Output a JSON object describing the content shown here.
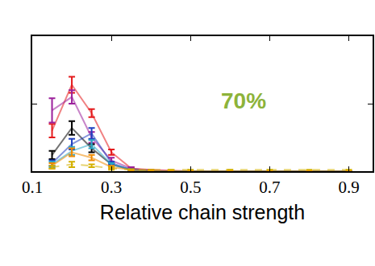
{
  "chart_data": {
    "type": "line",
    "x_label": "Relative chain strength",
    "annotations": [
      "70%"
    ],
    "annotation_color": "#8db33a",
    "x": [
      0.15,
      0.2,
      0.25,
      0.3,
      0.35,
      0.4,
      0.45,
      0.5,
      0.6,
      0.7,
      0.8,
      0.9
    ],
    "xlim": [
      0.1,
      0.96
    ],
    "xticks": [
      0.1,
      0.3,
      0.5,
      0.7,
      0.9
    ],
    "ylim": [
      0,
      1
    ],
    "yticks": [
      0,
      0.5,
      1
    ],
    "tick_labels": "x",
    "grid": false,
    "series": [
      {
        "color": "#e41a1c",
        "line_style": "solid",
        "marker": "none",
        "values": [
          0.3,
          0.64,
          0.43,
          0.14,
          0.02,
          0.01,
          0.005,
          0,
          0,
          0,
          0,
          0
        ],
        "error": [
          0.05,
          0.06,
          0.03,
          0.02,
          0.01,
          0,
          0,
          0,
          0,
          0,
          0,
          0
        ]
      },
      {
        "color": "#9b1f9b",
        "line_style": "solid",
        "marker": "none",
        "values": [
          0.45,
          0.55,
          0.25,
          0.08,
          0.02,
          0.005,
          0,
          0,
          0,
          0,
          0,
          0
        ],
        "error": [
          0.09,
          0.05,
          0.04,
          0.02,
          0.01,
          0,
          0,
          0,
          0,
          0,
          0,
          0
        ]
      },
      {
        "color": "#000000",
        "line_style": "solid",
        "marker": "none",
        "values": [
          0.12,
          0.32,
          0.17,
          0.05,
          0.01,
          0,
          0,
          0,
          0,
          0,
          0,
          0
        ],
        "error": [
          0.03,
          0.05,
          0.03,
          0.01,
          0.005,
          0,
          0,
          0,
          0,
          0,
          0,
          0
        ]
      },
      {
        "color": "#1f3fbf",
        "line_style": "solid",
        "marker": "none",
        "values": [
          0.06,
          0.2,
          0.28,
          0.06,
          0.01,
          0,
          0,
          0,
          0,
          0,
          0,
          0
        ],
        "error": [
          0.02,
          0.04,
          0.04,
          0.01,
          0.005,
          0,
          0,
          0,
          0,
          0,
          0,
          0
        ]
      },
      {
        "color": "#2aa7c9",
        "line_style": "solid",
        "marker": "none",
        "values": [
          0.05,
          0.15,
          0.2,
          0.05,
          0.01,
          0,
          0,
          0,
          0,
          0,
          0,
          0
        ],
        "error": [
          0.02,
          0.03,
          0.03,
          0.01,
          0.005,
          0,
          0,
          0,
          0,
          0,
          0,
          0
        ]
      },
      {
        "color": "#f08a00",
        "line_style": "solid",
        "marker": "none",
        "values": [
          0.04,
          0.14,
          0.1,
          0.03,
          0.01,
          0,
          0,
          0,
          0,
          0,
          0,
          0
        ],
        "error": [
          0.02,
          0.03,
          0.02,
          0.01,
          0.005,
          0,
          0,
          0,
          0,
          0,
          0,
          0
        ]
      },
      {
        "color": "#d4b000",
        "line_style": "dash",
        "marker": "none",
        "values": [
          0.03,
          0.05,
          0.04,
          0.02,
          0.01,
          0.01,
          0.01,
          0.01,
          0.01,
          0.01,
          0.01,
          0.01
        ],
        "error": [
          0.01,
          0.02,
          0.01,
          0.01,
          0,
          0,
          0,
          0,
          0,
          0,
          0,
          0
        ]
      }
    ]
  }
}
